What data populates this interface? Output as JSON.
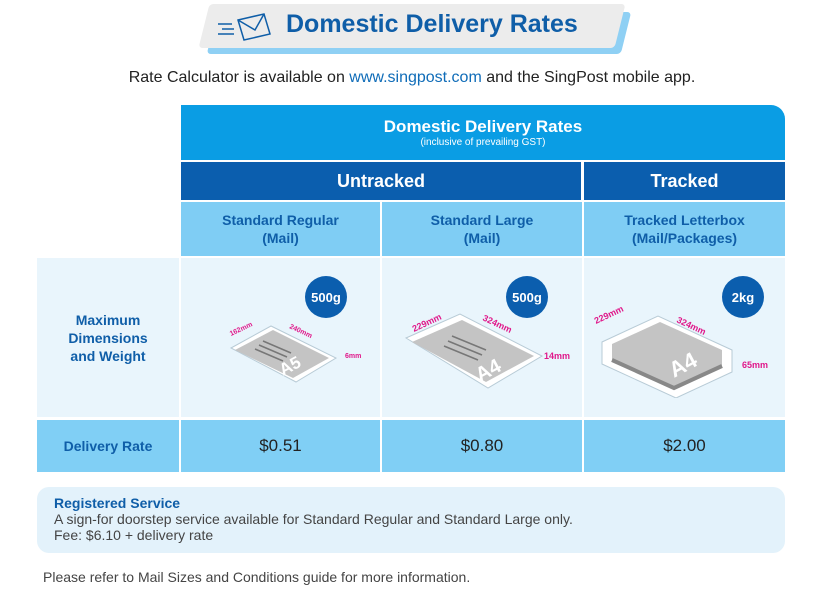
{
  "banner": {
    "title": "Domestic Delivery Rates",
    "icon": "envelope-icon"
  },
  "intro": {
    "before": "Rate Calculator is available on ",
    "link": "www.singpost.com",
    "after": " and the SingPost mobile app."
  },
  "table": {
    "title": "Domestic Delivery Rates",
    "subtitle": "(inclusive of prevailing GST)",
    "groups": [
      "Untracked",
      "Tracked"
    ],
    "columns": [
      {
        "line1": "Standard Regular",
        "line2": "(Mail)",
        "weight": "500g",
        "size": "A5",
        "dims": [
          "162mm",
          "240mm",
          "6mm"
        ],
        "rate": "$0.51"
      },
      {
        "line1": "Standard Large",
        "line2": "(Mail)",
        "weight": "500g",
        "size": "A4",
        "dims": [
          "229mm",
          "324mm",
          "14mm"
        ],
        "rate": "$0.80"
      },
      {
        "line1": "Tracked Letterbox",
        "line2": "(Mail/Packages)",
        "weight": "2kg",
        "size": "A4",
        "dims": [
          "229mm",
          "324mm",
          "65mm"
        ],
        "rate": "$2.00"
      }
    ],
    "row_labels": {
      "dims": [
        "Maximum",
        "Dimensions",
        "and Weight"
      ],
      "rate": "Delivery Rate"
    }
  },
  "registered": {
    "title": "Registered Service",
    "line1": "A sign-for doorstep service available for Standard Regular and Standard Large only.",
    "line2": "Fee: $6.10 + delivery rate"
  },
  "footer": "Please refer to Mail Sizes and Conditions guide for more information.",
  "colors": {
    "brand_dark": "#0b5eae",
    "brand": "#0a9de4",
    "light": "#7fcdf4",
    "accent_magenta": "#e0188a"
  }
}
